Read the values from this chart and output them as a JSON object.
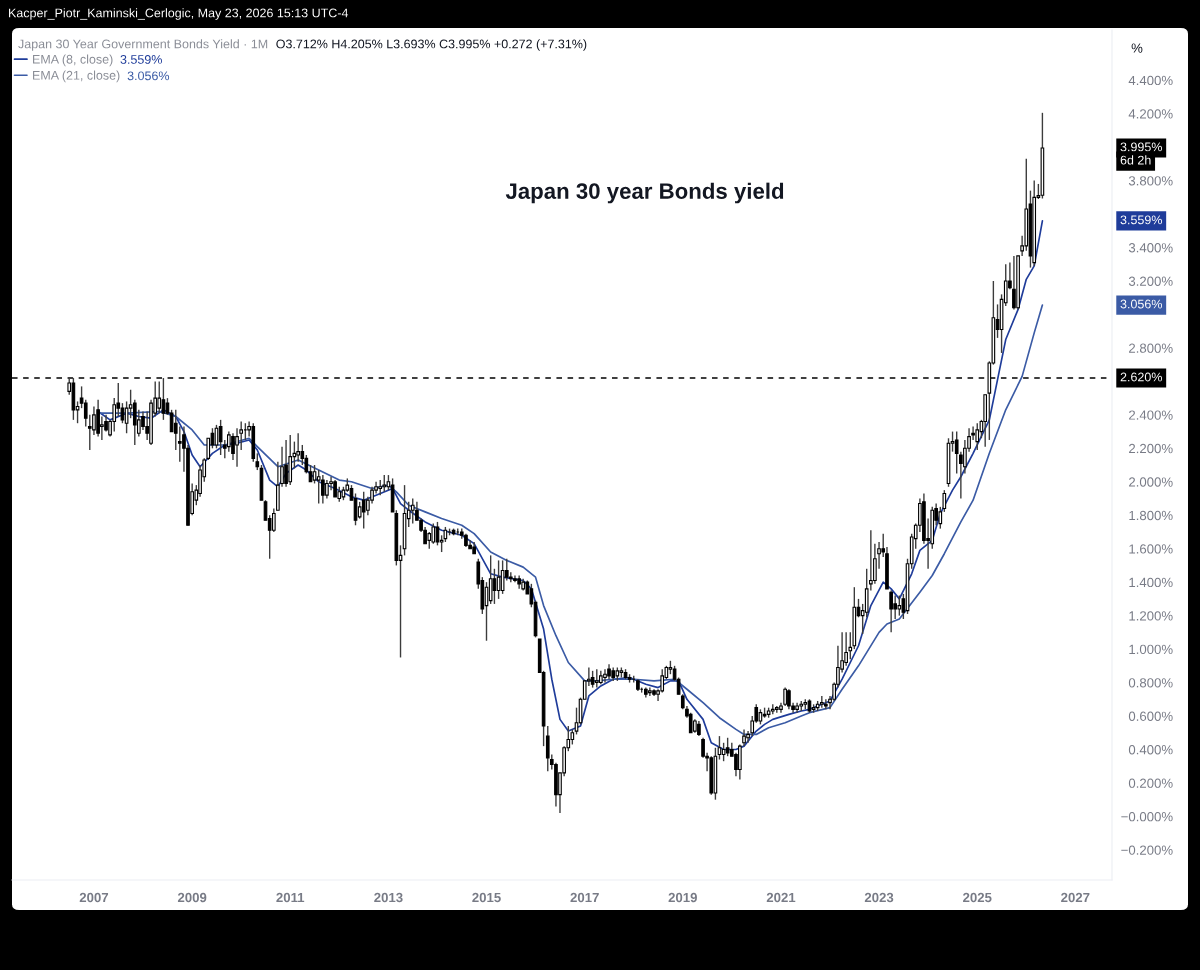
{
  "chart_data": {
    "type": "candlestick",
    "title": "Japan 30 year Bonds yield",
    "subtitle": "Japan 30 Year Government Bonds Yield · 1M",
    "ylabel": "%",
    "annotations": [
      "Kacper_Piotr_Kaminski_Cerlogic, May 23, 2026 15:13 UTC-4",
      "O3.712% H4.205% L3.693% C3.995% +0.272 (+7.31%)",
      "3.559%",
      "3.056%",
      "3.995%",
      "6d 2h",
      "3.559%",
      "3.056%"
    ],
    "x": [
      "2006-07",
      "2006-08",
      "2006-09",
      "2006-10",
      "2006-11",
      "2006-12",
      "2007-01",
      "2007-02",
      "2007-03",
      "2007-04",
      "2007-05",
      "2007-06",
      "2007-07",
      "2007-08",
      "2007-09",
      "2007-10",
      "2007-11",
      "2007-12",
      "2008-01",
      "2008-02",
      "2008-03",
      "2008-04",
      "2008-05",
      "2008-06",
      "2008-07",
      "2008-08",
      "2008-09",
      "2008-10",
      "2008-11",
      "2008-12",
      "2009-01",
      "2009-02",
      "2009-03",
      "2009-04",
      "2009-05",
      "2009-06",
      "2009-07",
      "2009-08",
      "2009-09",
      "2009-10",
      "2009-11",
      "2009-12",
      "2010-01",
      "2010-02",
      "2010-03",
      "2010-04",
      "2010-05",
      "2010-06",
      "2010-07",
      "2010-08",
      "2010-09",
      "2010-10",
      "2010-11",
      "2010-12",
      "2011-01",
      "2011-02",
      "2011-03",
      "2011-04",
      "2011-05",
      "2011-06",
      "2011-07",
      "2011-08",
      "2011-09",
      "2011-10",
      "2011-11",
      "2011-12",
      "2012-01",
      "2012-02",
      "2012-03",
      "2012-04",
      "2012-05",
      "2012-06",
      "2012-07",
      "2012-08",
      "2012-09",
      "2012-10",
      "2012-11",
      "2012-12",
      "2013-01",
      "2013-02",
      "2013-03",
      "2013-04",
      "2013-05",
      "2013-06",
      "2013-07",
      "2013-08",
      "2013-09",
      "2013-10",
      "2013-11",
      "2013-12",
      "2014-01",
      "2014-02",
      "2014-03",
      "2014-04",
      "2014-05",
      "2014-06",
      "2014-07",
      "2014-08",
      "2014-09",
      "2014-10",
      "2014-11",
      "2014-12",
      "2015-01",
      "2015-02",
      "2015-03",
      "2015-04",
      "2015-05",
      "2015-06",
      "2015-07",
      "2015-08",
      "2015-09",
      "2015-10",
      "2015-11",
      "2015-12",
      "2016-01",
      "2016-02",
      "2016-03",
      "2016-04",
      "2016-05",
      "2016-06",
      "2016-07",
      "2016-08",
      "2016-09",
      "2016-10",
      "2016-11",
      "2016-12",
      "2017-01",
      "2017-02",
      "2017-03",
      "2017-04",
      "2017-05",
      "2017-06",
      "2017-07",
      "2017-08",
      "2017-09",
      "2017-10",
      "2017-11",
      "2017-12",
      "2018-01",
      "2018-02",
      "2018-03",
      "2018-04",
      "2018-05",
      "2018-06",
      "2018-07",
      "2018-08",
      "2018-09",
      "2018-10",
      "2018-11",
      "2018-12",
      "2019-01",
      "2019-02",
      "2019-03",
      "2019-04",
      "2019-05",
      "2019-06",
      "2019-07",
      "2019-08",
      "2019-09",
      "2019-10",
      "2019-11",
      "2019-12",
      "2020-01",
      "2020-02",
      "2020-03",
      "2020-04",
      "2020-05",
      "2020-06",
      "2020-07",
      "2020-08",
      "2020-09",
      "2020-10",
      "2020-11",
      "2020-12",
      "2021-01",
      "2021-02",
      "2021-03",
      "2021-04",
      "2021-05",
      "2021-06",
      "2021-07",
      "2021-08",
      "2021-09",
      "2021-10",
      "2021-11",
      "2021-12",
      "2022-01",
      "2022-02",
      "2022-03",
      "2022-04",
      "2022-05",
      "2022-06",
      "2022-07",
      "2022-08",
      "2022-09",
      "2022-10",
      "2022-11",
      "2022-12",
      "2023-01",
      "2023-02",
      "2023-03",
      "2023-04",
      "2023-05",
      "2023-06",
      "2023-07",
      "2023-08",
      "2023-09",
      "2023-10",
      "2023-11",
      "2023-12",
      "2024-01",
      "2024-02",
      "2024-03",
      "2024-04",
      "2024-05",
      "2024-06",
      "2024-07",
      "2024-08",
      "2024-09",
      "2024-10",
      "2024-11",
      "2024-12",
      "2025-01",
      "2025-02",
      "2025-03",
      "2025-04",
      "2025-05",
      "2025-06",
      "2025-07",
      "2025-08",
      "2025-09",
      "2025-10",
      "2025-11",
      "2025-12",
      "2026-01",
      "2026-02",
      "2026-03",
      "2026-04",
      "2026-05"
    ],
    "ohlc": [
      [
        2.54,
        2.62,
        2.52,
        2.59
      ],
      [
        2.59,
        2.62,
        2.37,
        2.43
      ],
      [
        2.43,
        2.48,
        2.35,
        2.45
      ],
      [
        2.5,
        2.57,
        2.44,
        2.47
      ],
      [
        2.47,
        2.49,
        2.33,
        2.38
      ],
      [
        2.33,
        2.4,
        2.19,
        2.32
      ],
      [
        2.31,
        2.45,
        2.28,
        2.4
      ],
      [
        2.43,
        2.49,
        2.27,
        2.29
      ],
      [
        2.33,
        2.39,
        2.25,
        2.34
      ],
      [
        2.36,
        2.4,
        2.3,
        2.31
      ],
      [
        2.28,
        2.37,
        2.27,
        2.36
      ],
      [
        2.36,
        2.5,
        2.3,
        2.46
      ],
      [
        2.47,
        2.59,
        2.39,
        2.44
      ],
      [
        2.44,
        2.47,
        2.35,
        2.37
      ],
      [
        2.35,
        2.48,
        2.29,
        2.44
      ],
      [
        2.44,
        2.55,
        2.38,
        2.46
      ],
      [
        2.47,
        2.49,
        2.22,
        2.34
      ],
      [
        2.29,
        2.43,
        2.27,
        2.37
      ],
      [
        2.39,
        2.42,
        2.31,
        2.33
      ],
      [
        2.33,
        2.42,
        2.25,
        2.29
      ],
      [
        2.23,
        2.49,
        2.22,
        2.47
      ],
      [
        2.41,
        2.6,
        2.39,
        2.5
      ],
      [
        2.44,
        2.6,
        2.41,
        2.5
      ],
      [
        2.49,
        2.62,
        2.37,
        2.41
      ],
      [
        2.47,
        2.5,
        2.4,
        2.41
      ],
      [
        2.41,
        2.43,
        2.3,
        2.3
      ],
      [
        2.35,
        2.43,
        2.19,
        2.29
      ],
      [
        2.24,
        2.33,
        2.12,
        2.23
      ],
      [
        2.28,
        2.33,
        2.06,
        2.2
      ],
      [
        2.2,
        2.22,
        1.74,
        1.74
      ],
      [
        1.81,
        1.99,
        1.8,
        1.94
      ],
      [
        1.89,
        1.98,
        1.86,
        1.95
      ],
      [
        1.93,
        2.1,
        1.91,
        2.07
      ],
      [
        2.03,
        2.14,
        2.0,
        2.13
      ],
      [
        2.14,
        2.26,
        2.13,
        2.26
      ],
      [
        2.29,
        2.32,
        2.2,
        2.22
      ],
      [
        2.22,
        2.34,
        2.2,
        2.32
      ],
      [
        2.33,
        2.37,
        2.16,
        2.24
      ],
      [
        2.22,
        2.25,
        2.14,
        2.2
      ],
      [
        2.21,
        2.3,
        2.18,
        2.28
      ],
      [
        2.27,
        2.29,
        2.13,
        2.17
      ],
      [
        2.22,
        2.32,
        2.09,
        2.27
      ],
      [
        2.29,
        2.36,
        2.19,
        2.31
      ],
      [
        2.31,
        2.35,
        2.25,
        2.31
      ],
      [
        2.31,
        2.36,
        2.27,
        2.33
      ],
      [
        2.33,
        2.35,
        2.12,
        2.14
      ],
      [
        2.12,
        2.17,
        2.07,
        2.09
      ],
      [
        2.08,
        2.1,
        1.89,
        1.89
      ],
      [
        1.88,
        1.89,
        1.77,
        1.77
      ],
      [
        1.78,
        1.8,
        1.54,
        1.71
      ],
      [
        1.71,
        1.84,
        1.7,
        1.81
      ],
      [
        1.83,
        2.12,
        1.83,
        1.98
      ],
      [
        1.99,
        2.21,
        1.97,
        2.09
      ],
      [
        2.1,
        2.25,
        1.97,
        1.99
      ],
      [
        2.0,
        2.28,
        1.98,
        2.15
      ],
      [
        2.15,
        2.24,
        2.08,
        2.17
      ],
      [
        2.16,
        2.29,
        2.12,
        2.18
      ],
      [
        2.18,
        2.22,
        2.1,
        2.14
      ],
      [
        2.14,
        2.16,
        2.05,
        2.06
      ],
      [
        2.06,
        2.1,
        2.0,
        2.0
      ],
      [
        2.01,
        2.1,
        1.99,
        2.06
      ],
      [
        2.01,
        2.07,
        1.87,
        2.03
      ],
      [
        2.01,
        2.04,
        1.87,
        1.92
      ],
      [
        1.92,
        2.01,
        1.9,
        1.99
      ],
      [
        1.99,
        2.03,
        1.95,
        2.0
      ],
      [
        2.0,
        2.01,
        1.91,
        1.91
      ],
      [
        1.9,
        1.97,
        1.88,
        1.94
      ],
      [
        1.91,
        1.97,
        1.89,
        1.95
      ],
      [
        1.95,
        2.02,
        1.94,
        1.98
      ],
      [
        1.96,
        1.98,
        1.89,
        1.89
      ],
      [
        1.9,
        1.93,
        1.74,
        1.77
      ],
      [
        1.79,
        1.88,
        1.78,
        1.85
      ],
      [
        1.89,
        1.94,
        1.72,
        1.82
      ],
      [
        1.83,
        1.91,
        1.8,
        1.89
      ],
      [
        1.89,
        1.97,
        1.87,
        1.95
      ],
      [
        1.95,
        2.0,
        1.93,
        1.97
      ],
      [
        1.96,
        2.01,
        1.92,
        1.97
      ],
      [
        1.97,
        2.04,
        1.94,
        1.98
      ],
      [
        1.97,
        2.04,
        1.95,
        2.0
      ],
      [
        1.98,
        2.02,
        1.82,
        1.82
      ],
      [
        1.81,
        1.83,
        1.5,
        1.53
      ],
      [
        1.53,
        1.62,
        0.95,
        1.56
      ],
      [
        1.6,
        1.98,
        1.56,
        1.81
      ],
      [
        1.78,
        1.88,
        1.73,
        1.83
      ],
      [
        1.83,
        1.9,
        1.75,
        1.86
      ],
      [
        1.83,
        1.88,
        1.77,
        1.77
      ],
      [
        1.77,
        1.78,
        1.7,
        1.71
      ],
      [
        1.71,
        1.73,
        1.63,
        1.63
      ],
      [
        1.65,
        1.7,
        1.6,
        1.69
      ],
      [
        1.64,
        1.75,
        1.63,
        1.73
      ],
      [
        1.73,
        1.76,
        1.62,
        1.64
      ],
      [
        1.64,
        1.68,
        1.58,
        1.65
      ],
      [
        1.66,
        1.73,
        1.64,
        1.71
      ],
      [
        1.7,
        1.72,
        1.68,
        1.7
      ],
      [
        1.71,
        1.72,
        1.68,
        1.69
      ],
      [
        1.7,
        1.72,
        1.68,
        1.7
      ],
      [
        1.7,
        1.72,
        1.66,
        1.68
      ],
      [
        1.68,
        1.69,
        1.61,
        1.62
      ],
      [
        1.62,
        1.65,
        1.6,
        1.6
      ],
      [
        1.61,
        1.64,
        1.57,
        1.57
      ],
      [
        1.52,
        1.54,
        1.36,
        1.39
      ],
      [
        1.41,
        1.43,
        1.21,
        1.24
      ],
      [
        1.26,
        1.4,
        1.05,
        1.37
      ],
      [
        1.29,
        1.56,
        1.27,
        1.42
      ],
      [
        1.42,
        1.48,
        1.27,
        1.35
      ],
      [
        1.35,
        1.53,
        1.3,
        1.43
      ],
      [
        1.35,
        1.53,
        1.33,
        1.47
      ],
      [
        1.47,
        1.54,
        1.41,
        1.43
      ],
      [
        1.43,
        1.46,
        1.4,
        1.42
      ],
      [
        1.42,
        1.44,
        1.4,
        1.41
      ],
      [
        1.42,
        1.44,
        1.36,
        1.39
      ],
      [
        1.36,
        1.42,
        1.35,
        1.4
      ],
      [
        1.4,
        1.41,
        1.33,
        1.33
      ],
      [
        1.36,
        1.39,
        1.25,
        1.27
      ],
      [
        1.28,
        1.29,
        1.07,
        1.08
      ],
      [
        1.06,
        1.06,
        0.86,
        0.86
      ],
      [
        0.86,
        0.87,
        0.42,
        0.54
      ],
      [
        0.48,
        0.54,
        0.27,
        0.35
      ],
      [
        0.34,
        0.37,
        0.28,
        0.31
      ],
      [
        0.31,
        0.32,
        0.06,
        0.13
      ],
      [
        0.13,
        0.26,
        0.02,
        0.26
      ],
      [
        0.26,
        0.42,
        0.24,
        0.41
      ],
      [
        0.41,
        0.54,
        0.39,
        0.46
      ],
      [
        0.46,
        0.52,
        0.43,
        0.5
      ],
      [
        0.51,
        0.65,
        0.49,
        0.56
      ],
      [
        0.56,
        0.71,
        0.55,
        0.7
      ],
      [
        0.7,
        0.81,
        0.7,
        0.81
      ],
      [
        0.81,
        0.89,
        0.78,
        0.82
      ],
      [
        0.83,
        0.87,
        0.77,
        0.79
      ],
      [
        0.8,
        0.88,
        0.77,
        0.81
      ],
      [
        0.8,
        0.87,
        0.79,
        0.84
      ],
      [
        0.83,
        0.88,
        0.8,
        0.85
      ],
      [
        0.88,
        0.91,
        0.82,
        0.84
      ],
      [
        0.87,
        0.89,
        0.81,
        0.83
      ],
      [
        0.84,
        0.89,
        0.81,
        0.87
      ],
      [
        0.86,
        0.89,
        0.83,
        0.87
      ],
      [
        0.86,
        0.88,
        0.82,
        0.83
      ],
      [
        0.83,
        0.85,
        0.8,
        0.82
      ],
      [
        0.82,
        0.84,
        0.8,
        0.82
      ],
      [
        0.81,
        0.82,
        0.75,
        0.76
      ],
      [
        0.76,
        0.77,
        0.74,
        0.76
      ],
      [
        0.76,
        0.77,
        0.71,
        0.73
      ],
      [
        0.74,
        0.77,
        0.72,
        0.75
      ],
      [
        0.75,
        0.76,
        0.72,
        0.73
      ],
      [
        0.73,
        0.76,
        0.69,
        0.75
      ],
      [
        0.75,
        0.88,
        0.74,
        0.84
      ],
      [
        0.83,
        0.9,
        0.82,
        0.89
      ],
      [
        0.88,
        0.93,
        0.85,
        0.89
      ],
      [
        0.88,
        0.9,
        0.81,
        0.82
      ],
      [
        0.82,
        0.83,
        0.73,
        0.73
      ],
      [
        0.72,
        0.73,
        0.64,
        0.65
      ],
      [
        0.64,
        0.66,
        0.59,
        0.6
      ],
      [
        0.61,
        0.62,
        0.5,
        0.5
      ],
      [
        0.51,
        0.58,
        0.5,
        0.57
      ],
      [
        0.55,
        0.57,
        0.48,
        0.49
      ],
      [
        0.46,
        0.47,
        0.35,
        0.36
      ],
      [
        0.36,
        0.38,
        0.27,
        0.35
      ],
      [
        0.35,
        0.36,
        0.13,
        0.14
      ],
      [
        0.14,
        0.41,
        0.1,
        0.36
      ],
      [
        0.37,
        0.48,
        0.34,
        0.41
      ],
      [
        0.37,
        0.44,
        0.33,
        0.4
      ],
      [
        0.41,
        0.47,
        0.36,
        0.38
      ],
      [
        0.4,
        0.44,
        0.36,
        0.36
      ],
      [
        0.37,
        0.38,
        0.24,
        0.28
      ],
      [
        0.28,
        0.43,
        0.22,
        0.42
      ],
      [
        0.44,
        0.52,
        0.42,
        0.48
      ],
      [
        0.47,
        0.51,
        0.44,
        0.49
      ],
      [
        0.5,
        0.6,
        0.48,
        0.57
      ],
      [
        0.65,
        0.67,
        0.56,
        0.57
      ],
      [
        0.57,
        0.64,
        0.55,
        0.62
      ],
      [
        0.61,
        0.65,
        0.59,
        0.6
      ],
      [
        0.61,
        0.65,
        0.59,
        0.63
      ],
      [
        0.63,
        0.67,
        0.61,
        0.64
      ],
      [
        0.64,
        0.66,
        0.62,
        0.65
      ],
      [
        0.64,
        0.68,
        0.62,
        0.66
      ],
      [
        0.67,
        0.77,
        0.66,
        0.76
      ],
      [
        0.75,
        0.76,
        0.64,
        0.66
      ],
      [
        0.66,
        0.68,
        0.62,
        0.64
      ],
      [
        0.64,
        0.68,
        0.62,
        0.66
      ],
      [
        0.66,
        0.69,
        0.63,
        0.67
      ],
      [
        0.67,
        0.7,
        0.64,
        0.68
      ],
      [
        0.69,
        0.7,
        0.62,
        0.63
      ],
      [
        0.64,
        0.67,
        0.62,
        0.65
      ],
      [
        0.65,
        0.69,
        0.63,
        0.67
      ],
      [
        0.67,
        0.72,
        0.65,
        0.68
      ],
      [
        0.67,
        0.7,
        0.64,
        0.66
      ],
      [
        0.68,
        0.72,
        0.64,
        0.7
      ],
      [
        0.7,
        0.8,
        0.69,
        0.79
      ],
      [
        0.79,
        1.02,
        0.77,
        0.89
      ],
      [
        0.88,
        1.1,
        0.86,
        0.93
      ],
      [
        0.92,
        1.1,
        0.9,
        0.98
      ],
      [
        0.99,
        1.1,
        0.94,
        1.01
      ],
      [
        1.02,
        1.37,
        1.0,
        1.25
      ],
      [
        1.25,
        1.3,
        1.19,
        1.2
      ],
      [
        1.2,
        1.27,
        1.09,
        1.23
      ],
      [
        1.22,
        1.48,
        1.19,
        1.36
      ],
      [
        1.39,
        1.71,
        1.35,
        1.41
      ],
      [
        1.41,
        1.63,
        1.39,
        1.54
      ],
      [
        1.57,
        1.64,
        1.48,
        1.6
      ],
      [
        1.6,
        1.69,
        1.55,
        1.58
      ],
      [
        1.57,
        1.61,
        1.36,
        1.36
      ],
      [
        1.34,
        1.35,
        1.1,
        1.24
      ],
      [
        1.27,
        1.32,
        1.18,
        1.24
      ],
      [
        1.24,
        1.32,
        1.2,
        1.26
      ],
      [
        1.3,
        1.33,
        1.18,
        1.22
      ],
      [
        1.23,
        1.54,
        1.21,
        1.51
      ],
      [
        1.51,
        1.69,
        1.48,
        1.67
      ],
      [
        1.66,
        1.75,
        1.6,
        1.74
      ],
      [
        1.74,
        1.9,
        1.7,
        1.87
      ],
      [
        1.88,
        1.93,
        1.63,
        1.65
      ],
      [
        1.66,
        1.78,
        1.48,
        1.65
      ],
      [
        1.63,
        1.85,
        1.6,
        1.83
      ],
      [
        1.84,
        1.87,
        1.74,
        1.77
      ],
      [
        1.75,
        1.85,
        1.72,
        1.82
      ],
      [
        1.84,
        1.95,
        1.82,
        1.93
      ],
      [
        1.99,
        2.26,
        1.97,
        2.23
      ],
      [
        2.23,
        2.3,
        2.18,
        2.24
      ],
      [
        2.25,
        2.3,
        2.05,
        2.17
      ],
      [
        2.16,
        2.18,
        1.9,
        2.11
      ],
      [
        2.09,
        2.25,
        2.05,
        2.2
      ],
      [
        2.2,
        2.32,
        2.18,
        2.27
      ],
      [
        2.29,
        2.33,
        2.25,
        2.28
      ],
      [
        2.24,
        2.35,
        2.19,
        2.31
      ],
      [
        2.3,
        2.37,
        2.26,
        2.36
      ],
      [
        2.36,
        2.52,
        2.21,
        2.52
      ],
      [
        2.53,
        2.72,
        2.25,
        2.71
      ],
      [
        2.71,
        3.2,
        2.7,
        2.98
      ],
      [
        2.97,
        3.06,
        2.86,
        2.91
      ],
      [
        2.91,
        3.12,
        2.77,
        3.09
      ],
      [
        3.07,
        3.3,
        3.05,
        3.2
      ],
      [
        3.2,
        3.31,
        3.15,
        3.16
      ],
      [
        3.15,
        3.35,
        3.03,
        3.04
      ],
      [
        3.04,
        3.35,
        3.03,
        3.35
      ],
      [
        3.38,
        3.47,
        3.35,
        3.41
      ],
      [
        3.41,
        3.93,
        3.38,
        3.63
      ],
      [
        3.66,
        3.74,
        3.28,
        3.35
      ],
      [
        3.31,
        3.8,
        3.29,
        3.7
      ],
      [
        3.7,
        3.78,
        3.69,
        3.71
      ],
      [
        3.712,
        4.205,
        3.693,
        3.995
      ]
    ],
    "series": [
      {
        "name": "EMA (8, close)",
        "type": "line",
        "color": "#1f3c9a",
        "x": [
          "2007-02",
          "2007-05",
          "2007-09",
          "2007-12",
          "2008-03",
          "2008-06",
          "2008-09",
          "2008-11",
          "2009-01",
          "2009-03",
          "2009-06",
          "2009-09",
          "2009-12",
          "2010-03",
          "2010-05",
          "2010-08",
          "2010-10",
          "2010-12",
          "2011-03",
          "2011-05",
          "2011-08",
          "2011-12",
          "2012-04",
          "2012-07",
          "2012-10",
          "2013-02",
          "2013-04",
          "2013-06",
          "2013-10",
          "2014-02",
          "2014-07",
          "2014-10",
          "2015-02",
          "2015-05",
          "2015-10",
          "2015-12",
          "2016-03",
          "2016-05",
          "2016-07",
          "2016-09",
          "2016-12",
          "2017-02",
          "2017-05",
          "2017-08",
          "2017-12",
          "2018-04",
          "2018-07",
          "2018-10",
          "2018-12",
          "2019-02",
          "2019-06",
          "2019-08",
          "2019-11",
          "2020-02",
          "2020-04",
          "2020-07",
          "2020-09",
          "2020-11",
          "2021-03",
          "2021-06",
          "2021-08",
          "2022-01",
          "2022-04",
          "2022-08",
          "2022-11",
          "2023-02",
          "2023-04",
          "2023-06",
          "2023-09",
          "2023-11",
          "2024-02",
          "2024-04",
          "2024-07",
          "2024-09",
          "2024-12",
          "2025-04",
          "2025-06",
          "2025-08",
          "2025-11",
          "2026-01",
          "2026-03",
          "2026-05"
        ],
        "values": [
          2.42,
          2.37,
          2.41,
          2.39,
          2.38,
          2.43,
          2.39,
          2.3,
          2.16,
          2.09,
          2.17,
          2.22,
          2.23,
          2.25,
          2.19,
          2.01,
          1.97,
          2.05,
          2.1,
          2.07,
          2.0,
          1.96,
          1.91,
          1.89,
          1.92,
          1.96,
          1.87,
          1.83,
          1.76,
          1.71,
          1.68,
          1.63,
          1.45,
          1.43,
          1.41,
          1.36,
          1.12,
          0.82,
          0.58,
          0.51,
          0.54,
          0.72,
          0.78,
          0.82,
          0.83,
          0.79,
          0.77,
          0.81,
          0.81,
          0.7,
          0.58,
          0.44,
          0.4,
          0.4,
          0.42,
          0.51,
          0.55,
          0.58,
          0.61,
          0.63,
          0.64,
          0.69,
          0.82,
          1.02,
          1.26,
          1.4,
          1.36,
          1.3,
          1.45,
          1.59,
          1.65,
          1.81,
          1.95,
          2.03,
          2.17,
          2.37,
          2.61,
          2.85,
          3.03,
          3.21,
          3.29,
          3.559
        ]
      },
      {
        "name": "EMA (21, close)",
        "type": "line",
        "color": "#3b5ba5",
        "x": [
          "2007-02",
          "2007-09",
          "2008-05",
          "2008-09",
          "2009-01",
          "2009-04",
          "2009-09",
          "2010-03",
          "2010-05",
          "2010-10",
          "2011-03",
          "2011-08",
          "2012-01",
          "2012-04",
          "2012-09",
          "2013-01",
          "2013-03",
          "2013-06",
          "2013-10",
          "2014-02",
          "2014-07",
          "2014-10",
          "2015-02",
          "2015-06",
          "2015-10",
          "2016-01",
          "2016-03",
          "2016-06",
          "2016-09",
          "2017-01",
          "2017-04",
          "2017-08",
          "2018-01",
          "2018-06",
          "2018-11",
          "2019-02",
          "2019-06",
          "2019-10",
          "2020-02",
          "2020-04",
          "2020-07",
          "2020-10",
          "2021-02",
          "2021-06",
          "2021-08",
          "2022-01",
          "2022-04",
          "2022-08",
          "2023-01",
          "2023-03",
          "2023-06",
          "2023-11",
          "2024-02",
          "2024-05",
          "2024-09",
          "2024-12",
          "2025-04",
          "2025-08",
          "2025-12",
          "2026-03",
          "2026-05"
        ],
        "values": [
          2.41,
          2.41,
          2.42,
          2.39,
          2.31,
          2.22,
          2.22,
          2.26,
          2.21,
          2.09,
          2.13,
          2.07,
          2.01,
          2.0,
          1.96,
          1.98,
          1.94,
          1.86,
          1.82,
          1.78,
          1.74,
          1.69,
          1.58,
          1.53,
          1.49,
          1.43,
          1.26,
          1.08,
          0.92,
          0.81,
          0.81,
          0.82,
          0.82,
          0.81,
          0.82,
          0.76,
          0.68,
          0.59,
          0.52,
          0.49,
          0.49,
          0.53,
          0.56,
          0.6,
          0.62,
          0.65,
          0.76,
          0.9,
          1.1,
          1.15,
          1.18,
          1.34,
          1.44,
          1.57,
          1.76,
          1.89,
          2.17,
          2.43,
          2.63,
          2.89,
          3.056
        ]
      }
    ],
    "xlim": [
      "2005-05",
      "2027-10"
    ],
    "ylim": [
      -0.38,
      4.7
    ],
    "xticks": [
      "2007",
      "2009",
      "2011",
      "2013",
      "2015",
      "2017",
      "2019",
      "2021",
      "2023",
      "2025",
      "2027"
    ],
    "yticks": [
      {
        "value": -0.2,
        "label": "−0.200%"
      },
      {
        "value": 0,
        "label": "−0.000%"
      },
      {
        "value": 0.2,
        "label": "0.200%"
      },
      {
        "value": 0.4,
        "label": "0.400%"
      },
      {
        "value": 0.6,
        "label": "0.600%"
      },
      {
        "value": 0.8,
        "label": "0.800%"
      },
      {
        "value": 1.0,
        "label": "1.000%"
      },
      {
        "value": 1.2,
        "label": "1.200%"
      },
      {
        "value": 1.4,
        "label": "1.400%"
      },
      {
        "value": 1.6,
        "label": "1.600%"
      },
      {
        "value": 1.8,
        "label": "1.800%"
      },
      {
        "value": 2.0,
        "label": "2.000%"
      },
      {
        "value": 2.2,
        "label": "2.200%"
      },
      {
        "value": 2.4,
        "label": "2.400%"
      },
      {
        "value": 2.8,
        "label": "2.800%"
      },
      {
        "value": 3.2,
        "label": "3.200%"
      },
      {
        "value": 3.4,
        "label": "3.400%"
      },
      {
        "value": 3.8,
        "label": "3.800%"
      },
      {
        "value": 4.2,
        "label": "4.200%"
      },
      {
        "value": 4.4,
        "label": "4.400%"
      }
    ],
    "ref_lines": [
      {
        "axis": "y",
        "value": 2.62,
        "label": "2.620%",
        "color": "#000000",
        "line_style": "dashed"
      }
    ],
    "legend": "top left"
  }
}
